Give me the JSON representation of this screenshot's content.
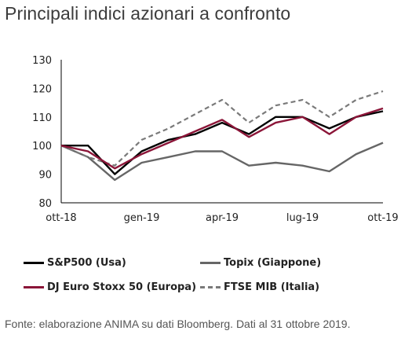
{
  "title": "Principali indici azionari a confronto",
  "source": "Fonte: elaborazione ANIMA su dati Bloomberg. Dati al 31 ottobre 2019.",
  "colors": {
    "sp500": "#000000",
    "topix": "#666666",
    "eurostoxx": "#8b1538",
    "ftsemib": "#7a7a7a"
  },
  "chart_data": {
    "type": "line",
    "x": [
      "ott-18",
      "nov-18",
      "dic-18",
      "gen-19",
      "feb-19",
      "mar-19",
      "apr-19",
      "mag-19",
      "giu-19",
      "lug-19",
      "ago-19",
      "set-19",
      "ott-19"
    ],
    "x_tick_labels": [
      "ott-18",
      "gen-19",
      "apr-19",
      "lug-19",
      "ott-19"
    ],
    "ylim": [
      80,
      130
    ],
    "y_ticks": [
      80,
      90,
      100,
      110,
      120,
      130
    ],
    "grid": false,
    "legend_position": "bottom",
    "series": [
      {
        "name": "S&P500 (Usa)",
        "values": [
          100,
          100,
          90,
          98,
          102,
          104,
          108,
          104,
          110,
          110,
          106,
          110,
          112
        ],
        "color": "#000000",
        "dash": "solid"
      },
      {
        "name": "Topix (Giappone)",
        "values": [
          100,
          96,
          88,
          94,
          96,
          98,
          98,
          93,
          94,
          93,
          91,
          97,
          101
        ],
        "color": "#666666",
        "dash": "solid"
      },
      {
        "name": "DJ Euro Stoxx 50 (Europa)",
        "values": [
          100,
          98,
          92,
          97,
          101,
          105,
          109,
          103,
          108,
          110,
          104,
          110,
          113
        ],
        "color": "#8b1538",
        "dash": "solid"
      },
      {
        "name": "FTSE MIB (Italia)",
        "values": [
          100,
          96,
          93,
          102,
          106,
          111,
          116,
          108,
          114,
          116,
          110,
          116,
          119
        ],
        "color": "#7a7a7a",
        "dash": "dashed"
      }
    ]
  }
}
